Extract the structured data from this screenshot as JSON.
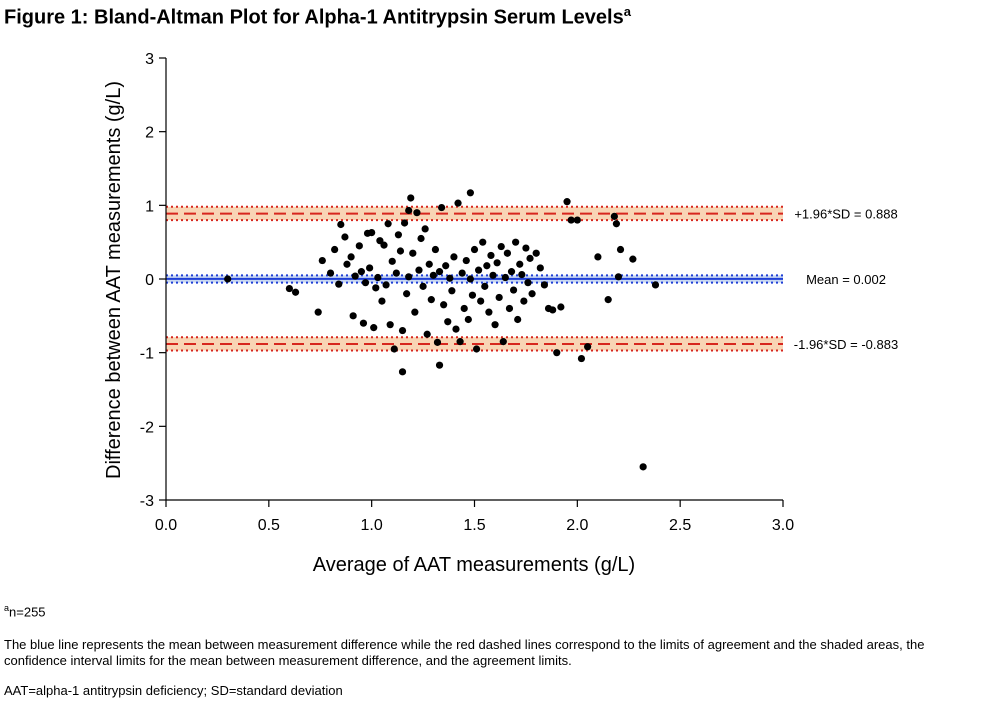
{
  "figure": {
    "title": "Figure 1: Bland-Altman Plot for Alpha-1 Antitrypsin Serum Levels",
    "title_superscript": "a"
  },
  "footnotes": {
    "n_marker": "a",
    "n_text": "n=255",
    "description": "The blue line represents the mean between measurement difference while the red dashed lines correspond to the limits of agreement and the shaded areas, the confidence interval limits for the mean between measurement difference, and the agreement limits.",
    "abbreviations": "AAT=alpha-1 antitrypsin deficiency; SD=standard deviation"
  },
  "chart_data": {
    "type": "scatter",
    "xlabel": "Average of AAT measurements (g/L)",
    "ylabel": "Difference between AAT measurements (g/L)",
    "xlim": [
      0.0,
      3.0
    ],
    "ylim": [
      -3,
      3
    ],
    "xticks": [
      0.0,
      0.5,
      1.0,
      1.5,
      2.0,
      2.5,
      3.0
    ],
    "xtick_labels": [
      "0.0",
      "0.5",
      "1.0",
      "1.5",
      "2.0",
      "2.5",
      "3.0"
    ],
    "yticks": [
      -3,
      -2,
      -1,
      0,
      1,
      2,
      3
    ],
    "ytick_labels": [
      "-3",
      "-2",
      "-1",
      "0",
      "1",
      "2",
      "3"
    ],
    "grid": false,
    "colors": {
      "mean": "#1f3fd6",
      "mean_band": "#c9d8f2",
      "limits": "#d7261e",
      "limit_band": "#f8d5b5",
      "points": "#000000"
    },
    "reference_lines": [
      {
        "name": "upper_limit",
        "y": 0.888,
        "ci": [
          0.8,
          0.98
        ],
        "style": "dashed",
        "color": "#d7261e",
        "label": "+1.96*SD = 0.888"
      },
      {
        "name": "mean",
        "y": 0.002,
        "ci": [
          -0.05,
          0.05
        ],
        "style": "solid",
        "color": "#1f3fd6",
        "label": "Mean = 0.002"
      },
      {
        "name": "lower_limit",
        "y": -0.883,
        "ci": [
          -0.97,
          -0.79
        ],
        "style": "dashed",
        "color": "#d7261e",
        "label": "-1.96*SD = -0.883"
      }
    ],
    "points": [
      [
        0.3,
        0.0
      ],
      [
        0.6,
        -0.13
      ],
      [
        0.63,
        -0.18
      ],
      [
        0.74,
        -0.45
      ],
      [
        0.76,
        0.25
      ],
      [
        0.8,
        0.08
      ],
      [
        0.82,
        0.4
      ],
      [
        0.84,
        -0.07
      ],
      [
        0.85,
        0.74
      ],
      [
        0.87,
        0.57
      ],
      [
        0.88,
        0.2
      ],
      [
        0.9,
        0.3
      ],
      [
        0.91,
        -0.5
      ],
      [
        0.92,
        0.04
      ],
      [
        0.94,
        0.45
      ],
      [
        0.95,
        0.1
      ],
      [
        0.96,
        -0.6
      ],
      [
        0.97,
        -0.05
      ],
      [
        0.98,
        0.62
      ],
      [
        0.99,
        0.15
      ],
      [
        1.0,
        0.63
      ],
      [
        1.01,
        -0.66
      ],
      [
        1.02,
        -0.12
      ],
      [
        1.03,
        0.02
      ],
      [
        1.04,
        0.52
      ],
      [
        1.05,
        -0.3
      ],
      [
        1.06,
        0.46
      ],
      [
        1.07,
        -0.08
      ],
      [
        1.08,
        0.75
      ],
      [
        1.09,
        -0.62
      ],
      [
        1.1,
        0.24
      ],
      [
        1.11,
        -0.95
      ],
      [
        1.12,
        0.08
      ],
      [
        1.13,
        0.6
      ],
      [
        1.14,
        0.38
      ],
      [
        1.15,
        -0.7
      ],
      [
        1.15,
        -1.26
      ],
      [
        1.16,
        0.76
      ],
      [
        1.17,
        -0.2
      ],
      [
        1.18,
        0.93
      ],
      [
        1.18,
        0.03
      ],
      [
        1.19,
        1.1
      ],
      [
        1.2,
        0.35
      ],
      [
        1.21,
        -0.45
      ],
      [
        1.22,
        0.9
      ],
      [
        1.23,
        0.12
      ],
      [
        1.24,
        0.55
      ],
      [
        1.25,
        -0.1
      ],
      [
        1.26,
        0.68
      ],
      [
        1.27,
        -0.75
      ],
      [
        1.28,
        0.2
      ],
      [
        1.29,
        -0.28
      ],
      [
        1.3,
        0.05
      ],
      [
        1.31,
        0.4
      ],
      [
        1.32,
        -0.86
      ],
      [
        1.33,
        0.1
      ],
      [
        1.33,
        -1.17
      ],
      [
        1.34,
        0.97
      ],
      [
        1.35,
        -0.35
      ],
      [
        1.36,
        0.18
      ],
      [
        1.37,
        -0.58
      ],
      [
        1.38,
        0.01
      ],
      [
        1.39,
        -0.16
      ],
      [
        1.4,
        0.3
      ],
      [
        1.41,
        -0.68
      ],
      [
        1.42,
        1.03
      ],
      [
        1.43,
        -0.85
      ],
      [
        1.44,
        0.08
      ],
      [
        1.45,
        -0.4
      ],
      [
        1.46,
        0.25
      ],
      [
        1.47,
        -0.55
      ],
      [
        1.48,
        1.17
      ],
      [
        1.48,
        0.0
      ],
      [
        1.49,
        -0.22
      ],
      [
        1.5,
        0.4
      ],
      [
        1.51,
        -0.95
      ],
      [
        1.52,
        0.12
      ],
      [
        1.53,
        -0.3
      ],
      [
        1.54,
        0.5
      ],
      [
        1.55,
        -0.1
      ],
      [
        1.56,
        0.18
      ],
      [
        1.57,
        -0.45
      ],
      [
        1.58,
        0.32
      ],
      [
        1.59,
        0.05
      ],
      [
        1.6,
        -0.62
      ],
      [
        1.61,
        0.22
      ],
      [
        1.62,
        -0.25
      ],
      [
        1.63,
        0.44
      ],
      [
        1.64,
        -0.85
      ],
      [
        1.65,
        0.02
      ],
      [
        1.66,
        0.35
      ],
      [
        1.67,
        -0.4
      ],
      [
        1.68,
        0.1
      ],
      [
        1.69,
        -0.15
      ],
      [
        1.7,
        0.5
      ],
      [
        1.71,
        -0.55
      ],
      [
        1.72,
        0.2
      ],
      [
        1.73,
        0.06
      ],
      [
        1.74,
        -0.3
      ],
      [
        1.75,
        0.42
      ],
      [
        1.76,
        -0.05
      ],
      [
        1.77,
        0.28
      ],
      [
        1.78,
        -0.2
      ],
      [
        1.8,
        0.35
      ],
      [
        1.82,
        0.15
      ],
      [
        1.84,
        -0.08
      ],
      [
        1.86,
        -0.4
      ],
      [
        1.88,
        -0.42
      ],
      [
        1.9,
        -1.0
      ],
      [
        1.92,
        -0.38
      ],
      [
        1.95,
        1.05
      ],
      [
        1.97,
        0.8
      ],
      [
        2.0,
        0.8
      ],
      [
        2.02,
        -1.08
      ],
      [
        2.05,
        -0.92
      ],
      [
        2.1,
        0.3
      ],
      [
        2.15,
        -0.28
      ],
      [
        2.18,
        0.85
      ],
      [
        2.19,
        0.75
      ],
      [
        2.2,
        0.03
      ],
      [
        2.21,
        0.4
      ],
      [
        2.27,
        0.27
      ],
      [
        2.32,
        -2.55
      ],
      [
        2.38,
        -0.08
      ]
    ]
  }
}
